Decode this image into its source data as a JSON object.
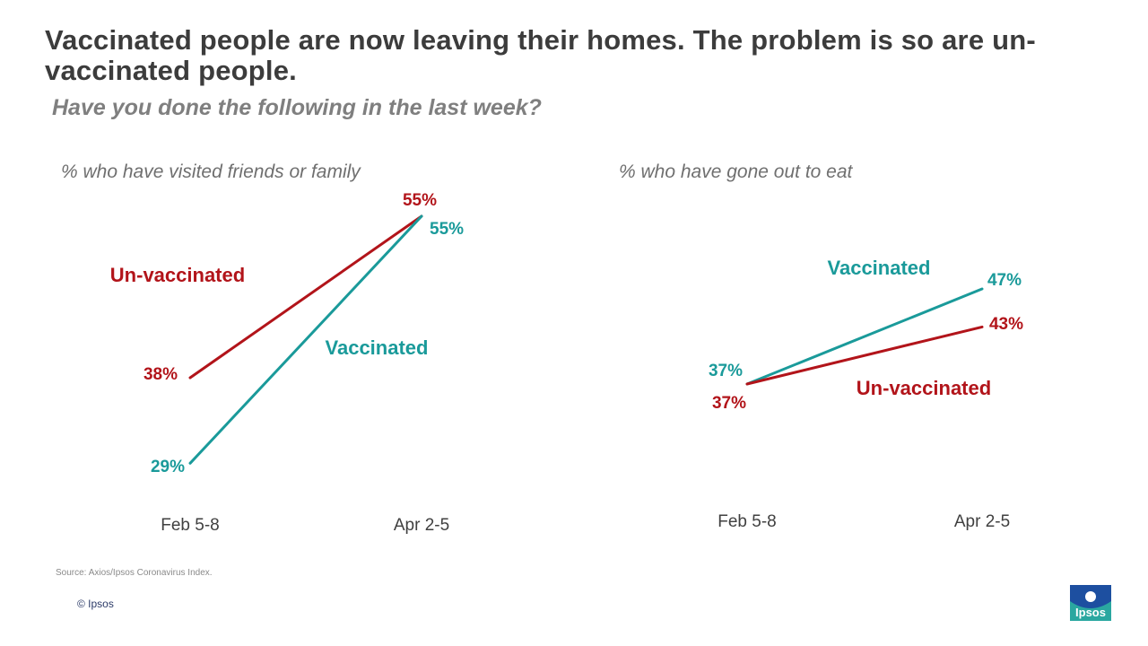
{
  "header": {
    "title": "Vaccinated people are now leaving their homes. The problem is so are un-vaccinated people.",
    "subtitle": "Have you done the following in the last week?"
  },
  "colors": {
    "unvaccinated": "#b2141a",
    "vaccinated": "#1a9a9a",
    "logo": "#1d4fa0"
  },
  "chart_data": [
    {
      "type": "line",
      "title": "% who have visited friends or family",
      "categories": [
        "Feb 5-8",
        "Apr 2-5"
      ],
      "ylim": [
        0,
        100
      ],
      "grid": false,
      "series": [
        {
          "name": "Un-vaccinated",
          "values": [
            38,
            55
          ],
          "labels": [
            "38%",
            "55%"
          ]
        },
        {
          "name": "Vaccinated",
          "values": [
            29,
            55
          ],
          "labels": [
            "29%",
            "55%"
          ]
        }
      ]
    },
    {
      "type": "line",
      "title": "% who have gone out to eat",
      "categories": [
        "Feb 5-8",
        "Apr 2-5"
      ],
      "ylim": [
        0,
        100
      ],
      "grid": false,
      "series": [
        {
          "name": "Vaccinated",
          "values": [
            37,
            47
          ],
          "labels": [
            "37%",
            "47%"
          ]
        },
        {
          "name": "Un-vaccinated",
          "values": [
            37,
            43
          ],
          "labels": [
            "37%",
            "43%"
          ]
        }
      ]
    }
  ],
  "footer": {
    "source": "Source: Axios/Ipsos Coronavirus Index.",
    "copyright": "© Ipsos",
    "logo_text": "Ipsos"
  }
}
